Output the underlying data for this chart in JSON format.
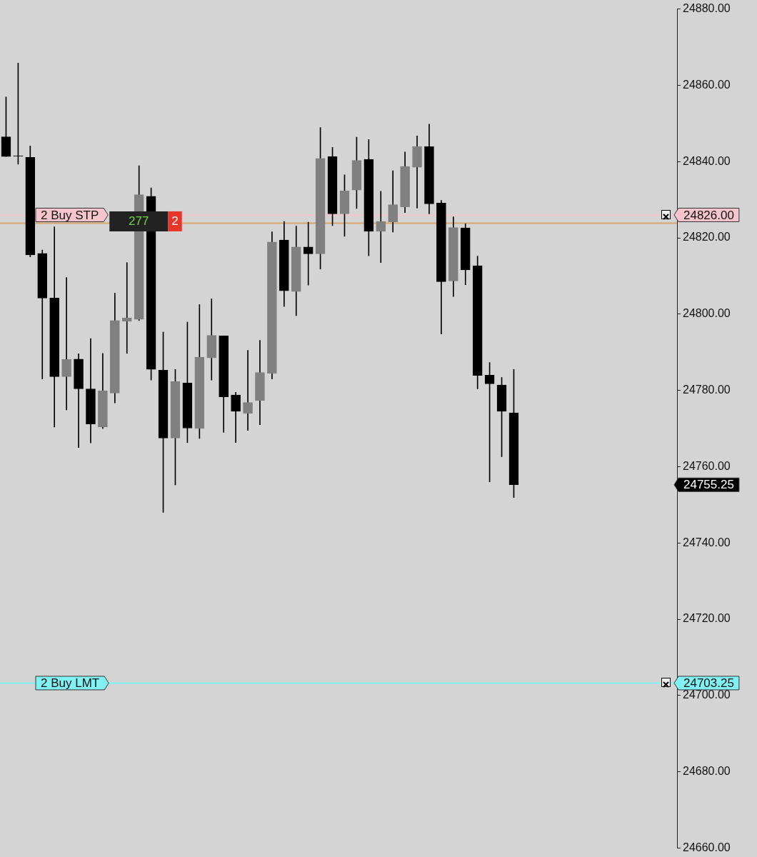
{
  "chart_data": {
    "type": "candlestick",
    "categories": [
      null,
      null,
      null,
      null,
      null,
      null,
      null,
      null,
      null,
      null,
      null,
      null,
      null,
      null,
      null,
      null,
      null,
      null,
      null,
      null,
      null,
      null,
      null,
      null,
      null,
      null,
      null,
      null,
      null,
      null,
      null,
      null,
      null,
      null,
      null,
      null,
      null,
      null,
      null,
      null,
      null,
      null,
      null,
      null,
      null,
      null,
      null,
      null,
      null,
      null,
      null,
      null,
      null,
      null,
      null,
      null
    ],
    "ohlc": [
      [
        24846.5,
        24856.9,
        24841.3,
        24841.3
      ],
      [
        24841.5,
        24865.8,
        24839.3,
        24841.4
      ],
      [
        24841.1,
        24844.1,
        24815.0,
        24815.5
      ],
      [
        24815.9,
        24816.8,
        24783.0,
        24804.2
      ],
      [
        24804.2,
        24822.9,
        24770.4,
        24783.6
      ],
      [
        24783.6,
        24809.6,
        24774.9,
        24788.1
      ],
      [
        24788.2,
        24789.6,
        24765.0,
        24780.4
      ],
      [
        24780.4,
        24793.6,
        24766.2,
        24771.2
      ],
      [
        24770.4,
        24789.7,
        24770.0,
        24779.9
      ],
      [
        24779.3,
        24805.5,
        24776.7,
        24798.3
      ],
      [
        24798.1,
        24813.5,
        24789.7,
        24799.0
      ],
      [
        24798.6,
        24838.9,
        24798.3,
        24831.3
      ],
      [
        24830.9,
        24833.1,
        24782.7,
        24785.5
      ],
      [
        24785.3,
        24795.3,
        24748.0,
        24767.5
      ],
      [
        24767.5,
        24785.5,
        24755.2,
        24782.3
      ],
      [
        24781.9,
        24797.9,
        24766.3,
        24770.1
      ],
      [
        24770.0,
        24802.5,
        24767.4,
        24788.7
      ],
      [
        24788.5,
        24804.0,
        24782.7,
        24794.4
      ],
      [
        24794.3,
        24794.3,
        24769.0,
        24778.3
      ],
      [
        24778.8,
        24779.5,
        24766.3,
        24774.5
      ],
      [
        24774.0,
        24790.5,
        24769.5,
        24776.8
      ],
      [
        24777.3,
        24793.1,
        24771.0,
        24784.7
      ],
      [
        24784.5,
        24821.6,
        24783.0,
        24818.9
      ],
      [
        24819.4,
        24824.3,
        24802.0,
        24806.1
      ],
      [
        24805.9,
        24823.1,
        24799.6,
        24817.6
      ],
      [
        24817.6,
        24824.1,
        24807.6,
        24815.8
      ],
      [
        24815.8,
        24848.9,
        24811.8,
        24840.8
      ],
      [
        24841.3,
        24843.7,
        24823.2,
        24826.3
      ],
      [
        24826.3,
        24836.5,
        24820.4,
        24832.3
      ],
      [
        24832.5,
        24846.4,
        24827.7,
        24840.3
      ],
      [
        24840.6,
        24845.8,
        24815.3,
        24821.7
      ],
      [
        24821.7,
        24832.2,
        24813.5,
        24824.3
      ],
      [
        24824.2,
        24837.6,
        24821.5,
        24828.7
      ],
      [
        24828.1,
        24842.5,
        24826.6,
        24838.7
      ],
      [
        24838.5,
        24846.7,
        24827.8,
        24843.9
      ],
      [
        24843.9,
        24849.8,
        24826.3,
        24828.9
      ],
      [
        24829.1,
        24829.8,
        24794.8,
        24808.5
      ],
      [
        24808.7,
        24825.5,
        24804.6,
        24822.7
      ],
      [
        24822.6,
        24823.7,
        24807.7,
        24811.6
      ],
      [
        24812.7,
        24815.2,
        24780.4,
        24783.9
      ],
      [
        24784.0,
        24787.3,
        24756.0,
        24781.7
      ],
      [
        24781.4,
        24783.4,
        24762.6,
        24774.5
      ],
      [
        24774.1,
        24785.5,
        24751.9,
        24755.25
      ],
      null,
      null,
      null,
      null,
      null,
      null,
      null,
      null,
      null,
      null,
      null,
      null,
      null
    ],
    "colors": [
      "#000000",
      "#000000",
      "#000000",
      "#000000",
      "#000000",
      "#808080",
      "#000000",
      "#000000",
      "#808080",
      "#808080",
      "#808080",
      "#808080",
      "#000000",
      "#000000",
      "#808080",
      "#000000",
      "#808080",
      "#808080",
      "#000000",
      "#000000",
      "#808080",
      "#808080",
      "#808080",
      "#000000",
      "#808080",
      "#000000",
      "#808080",
      "#000000",
      "#808080",
      "#808080",
      "#000000",
      "#808080",
      "#808080",
      "#808080",
      "#808080",
      "#000000",
      "#000000",
      "#808080",
      "#000000",
      "#000000",
      "#000000",
      "#000000",
      "#000000",
      null,
      null,
      null,
      null,
      null,
      null,
      null,
      null,
      null,
      null,
      null,
      null,
      null
    ],
    "ylim": [
      24660,
      24880
    ],
    "yticks": [
      {
        "value": 24660,
        "label": "24660.00"
      },
      {
        "value": 24680,
        "label": "24680.00"
      },
      {
        "value": 24700,
        "label": "24700.00"
      },
      {
        "value": 24720,
        "label": "24720.00"
      },
      {
        "value": 24740,
        "label": "24740.00"
      },
      {
        "value": 24760,
        "label": "24760.00"
      },
      {
        "value": 24780,
        "label": "24780.00"
      },
      {
        "value": 24800,
        "label": "24800.00"
      },
      {
        "value": 24820,
        "label": "24820.00"
      },
      {
        "value": 24840,
        "label": "24840.00"
      },
      {
        "value": 24860,
        "label": "24860.00"
      },
      {
        "value": 24880,
        "label": "24880.00"
      }
    ],
    "tick_labels": "y",
    "grid": false,
    "legend": false,
    "ref_lines": [
      {
        "axis": "y",
        "value": 24824,
        "label": null,
        "color": "#d7a56a"
      },
      {
        "axis": "y",
        "value": 24826,
        "label": "2 Buy STP",
        "color": "#f5c4cc"
      },
      {
        "axis": "y",
        "value": 24703.25,
        "label": "2 Buy LMT",
        "color": "#80f2f4"
      }
    ],
    "annotations": [
      "277",
      "2",
      "24755.25",
      "24826.00",
      "24703.25"
    ]
  }
}
